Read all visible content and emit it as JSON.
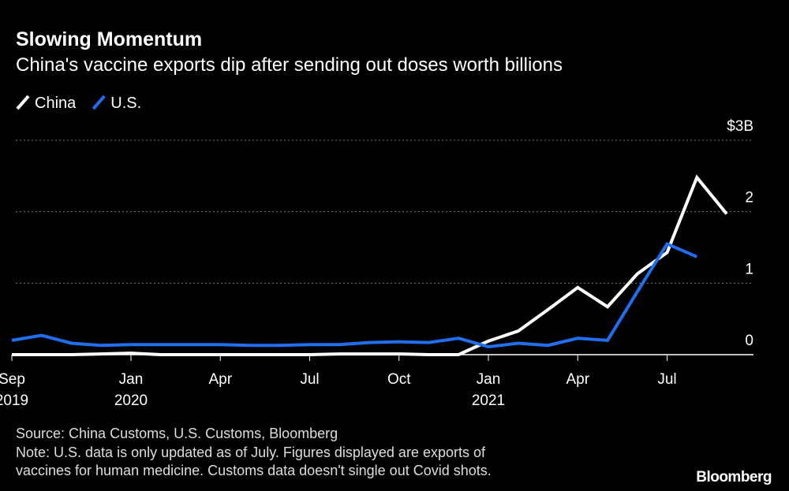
{
  "chart_data": {
    "type": "line",
    "title": "Slowing Momentum",
    "subtitle": "China's vaccine exports dip after sending out doses worth billions",
    "categories": [
      "Sep 2019",
      null,
      null,
      null,
      "Jan 2020",
      null,
      null,
      "Apr",
      null,
      null,
      "Jul",
      null,
      null,
      "Oct",
      null,
      null,
      "Jan 2021",
      null,
      null,
      "Apr",
      null,
      null,
      "Jul",
      null,
      null
    ],
    "series": [
      {
        "name": "China",
        "color": "#ffffff",
        "values": [
          0,
          0,
          0,
          0.01,
          0.02,
          0,
          0,
          0,
          0,
          0,
          0,
          0.01,
          0.01,
          0.01,
          0,
          0,
          0.19,
          0.33,
          0.63,
          0.94,
          0.67,
          1.13,
          1.43,
          2.48,
          1.97
        ]
      },
      {
        "name": "U.S.",
        "color": "#1f6ff0",
        "values": [
          0.2,
          0.27,
          0.16,
          0.13,
          0.14,
          0.14,
          0.14,
          0.14,
          0.13,
          0.13,
          0.14,
          0.14,
          0.17,
          0.18,
          0.17,
          0.23,
          0.11,
          0.16,
          0.13,
          0.23,
          0.2,
          0.88,
          1.55,
          1.37,
          null
        ]
      }
    ],
    "ylim": [
      0,
      3
    ],
    "yticks": [
      0,
      1,
      2,
      {
        "value": 3,
        "label": "$3B"
      }
    ],
    "grid": true,
    "legend": "top-left",
    "source": "Source: China Customs, U.S. Customs, Bloomberg",
    "note": [
      "Note: U.S. data is only updated as of July. Figures displayed are exports of",
      "vaccines for human medicine. Customs data doesn't single out Covid shots."
    ],
    "brand": "Bloomberg"
  }
}
